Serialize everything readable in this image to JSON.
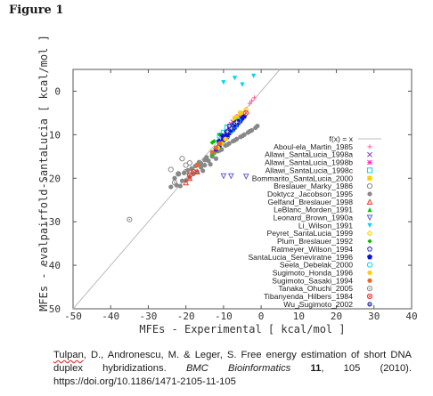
{
  "figure": {
    "title": "Figure 1"
  },
  "chart_data": {
    "type": "scatter",
    "xlabel": "MFEs - Experimental [ kcal/mol ]",
    "ylabel": "MFEs - evalpairfold-SantaLucia [ kcal/mol ]",
    "xlim": [
      -50,
      40
    ],
    "ylim": [
      -50,
      5
    ],
    "y_inverted": true,
    "x_ticks": [
      "-50",
      "-40",
      "-30",
      "-20",
      "-10",
      "0",
      "10",
      "20",
      "30",
      "40"
    ],
    "y_ticks": [
      "0",
      "10",
      "20",
      "30",
      "40",
      "50"
    ],
    "grid": false,
    "legend_position": "right",
    "reference_line": {
      "label": "f(x) = x",
      "color": "#bbbbbb"
    },
    "series": [
      {
        "name": "Aboul-ela_Martin_1985",
        "color": "#ff5fa0",
        "marker": "plus",
        "points": [
          [
            -2.5,
            -2.2
          ],
          [
            -3,
            -2.8
          ],
          [
            -1.8,
            -1.5
          ]
        ]
      },
      {
        "name": "Allawi_SantaLucia_1998a",
        "color": "#8a3ab9",
        "marker": "x",
        "points": [
          [
            -6.5,
            -6.2
          ],
          [
            -7.5,
            -7.1
          ],
          [
            -8.5,
            -8.2
          ],
          [
            -5.5,
            -5.4
          ]
        ]
      },
      {
        "name": "Allawi_SantaLucia_1998b",
        "color": "#ff33cc",
        "marker": "star",
        "points": [
          [
            -7,
            -6.6
          ],
          [
            -6,
            -5.8
          ],
          [
            -8,
            -7.6
          ]
        ]
      },
      {
        "name": "Allawi_SantaLucia_1998c",
        "color": "#00d4f0",
        "marker": "square",
        "points": [
          [
            -9,
            -8.3
          ],
          [
            -10,
            -9.5
          ],
          [
            -11,
            -10.2
          ]
        ]
      },
      {
        "name": "Bommarito_SantaLucia_2000",
        "color": "#ffd000",
        "marker": "filled-square",
        "points": [
          [
            -5.5,
            -5
          ],
          [
            -6.5,
            -6
          ],
          [
            -7,
            -6.3
          ]
        ]
      },
      {
        "name": "Breslauer_Marky_1986",
        "color": "#888888",
        "marker": "circle",
        "points": [
          [
            -22,
            -19
          ],
          [
            -20,
            -17
          ],
          [
            -19,
            -16.5
          ],
          [
            -24,
            -18
          ],
          [
            -21,
            -15.5
          ]
        ]
      },
      {
        "name": "Doktycz_Jacobson_1995",
        "color": "#888888",
        "marker": "filled-circle",
        "points": [
          [
            -14,
            -16
          ],
          [
            -13,
            -15
          ],
          [
            -15,
            -17
          ],
          [
            -12,
            -15.5
          ],
          [
            -16,
            -17.5
          ],
          [
            -13.5,
            -16.8
          ],
          [
            -14.5,
            -15.2
          ],
          [
            -17,
            -18.5
          ],
          [
            -18,
            -19
          ],
          [
            -19,
            -19.8
          ],
          [
            -20,
            -20.5
          ],
          [
            -21,
            -20.6
          ],
          [
            -17.5,
            -17.2
          ],
          [
            -16.5,
            -16.3
          ],
          [
            -15.5,
            -18.3
          ],
          [
            -18.5,
            -17.8
          ],
          [
            -22,
            -19
          ],
          [
            -23,
            -20
          ],
          [
            -12.5,
            -14.2
          ],
          [
            -11.5,
            -13.8
          ],
          [
            -10.5,
            -13.4
          ],
          [
            -9.5,
            -12.5
          ],
          [
            -8.5,
            -12.0
          ],
          [
            -7.5,
            -11.5
          ],
          [
            -6.5,
            -11.0
          ],
          [
            -5.5,
            -10.5
          ],
          [
            -4.5,
            -10.0
          ],
          [
            -3.5,
            -9.5
          ],
          [
            -2.5,
            -9.0
          ],
          [
            -1.5,
            -8.4
          ],
          [
            -1.0,
            -8.0
          ],
          [
            -3.0,
            -9.2
          ],
          [
            -5.0,
            -10.3
          ],
          [
            -7.0,
            -11.3
          ],
          [
            -9.0,
            -12.3
          ],
          [
            -11.0,
            -13.6
          ],
          [
            -13.0,
            -14.6
          ],
          [
            -20.5,
            -18.8
          ],
          [
            -19.5,
            -18.2
          ],
          [
            -17.0,
            -16.9
          ],
          [
            -16.0,
            -16.6
          ],
          [
            -15.0,
            -15.8
          ],
          [
            -24,
            -22
          ],
          [
            -22.5,
            -21.6
          ],
          [
            -21.5,
            -21.8
          ]
        ]
      },
      {
        "name": "Gelfand_Breslauer_1998",
        "color": "#e83a2a",
        "marker": "triangle",
        "points": [
          [
            -20,
            -21
          ],
          [
            -19,
            -20
          ],
          [
            -17,
            -18.5
          ]
        ]
      },
      {
        "name": "LeBlanc_Morden_1991",
        "color": "#00cc00",
        "marker": "filled-triangle",
        "points": [
          [
            -12,
            -13.5
          ],
          [
            -13,
            -14.5
          ],
          [
            -11,
            -12.5
          ]
        ]
      },
      {
        "name": "Leonard_Brown_1990a",
        "color": "#6060cc",
        "marker": "inv-triangle",
        "points": [
          [
            -10,
            -19.5
          ],
          [
            -8,
            -19.5
          ],
          [
            -4,
            -19.6
          ]
        ]
      },
      {
        "name": "Li_Wilson_1991",
        "color": "#00d4f0",
        "marker": "filled-inv-triangle",
        "points": [
          [
            -10,
            2
          ],
          [
            -7,
            3
          ],
          [
            -5,
            1.5
          ],
          [
            -2,
            3.5
          ]
        ]
      },
      {
        "name": "Peyret_SantaLucia_1999",
        "color": "#ffd000",
        "marker": "diamond",
        "points": [
          [
            -5,
            -5.5
          ],
          [
            -6,
            -6.5
          ],
          [
            -4,
            -4.2
          ]
        ]
      },
      {
        "name": "Plum_Breslauer_1992",
        "color": "#00bb00",
        "marker": "filled-diamond",
        "points": [
          [
            -11,
            -10
          ],
          [
            -12.5,
            -11.5
          ],
          [
            -13,
            -11.8
          ]
        ]
      },
      {
        "name": "Ratmeyer_Wilson_1994",
        "color": "#3030cc",
        "marker": "pentagon",
        "points": [
          [
            -9,
            -10.5
          ],
          [
            -10,
            -11.2
          ],
          [
            -8,
            -9.2
          ]
        ]
      },
      {
        "name": "SantaLucia_Seneviratne_1996",
        "color": "#1010e0",
        "marker": "filled-pentagon",
        "points": [
          [
            -9,
            -10
          ],
          [
            -8.5,
            -9.6
          ],
          [
            -8,
            -9.2
          ],
          [
            -7.5,
            -8.8
          ],
          [
            -7,
            -8.3
          ],
          [
            -6.5,
            -7.8
          ],
          [
            -6,
            -7.2
          ],
          [
            -5.5,
            -6.8
          ],
          [
            -5,
            -6.2
          ],
          [
            -9.5,
            -10.6
          ],
          [
            -10,
            -11.2
          ],
          [
            -10.5,
            -11.8
          ],
          [
            -11,
            -12.3
          ],
          [
            -11.5,
            -12.9
          ],
          [
            -12,
            -13.3
          ],
          [
            -4.5,
            -5.8
          ],
          [
            -9.2,
            -9.4
          ],
          [
            -8.2,
            -8.6
          ],
          [
            -7.2,
            -7.7
          ],
          [
            -10.2,
            -10.3
          ],
          [
            -11.2,
            -11.5
          ],
          [
            -6.3,
            -6.9
          ]
        ]
      },
      {
        "name": "Seela_Debelak_2000",
        "color": "#00d4f0",
        "marker": "open-circle",
        "points": [
          [
            -7,
            -8
          ],
          [
            -6,
            -6.8
          ],
          [
            -8,
            -9.1
          ]
        ]
      },
      {
        "name": "Sugimoto_Honda_1996",
        "color": "#ffd000",
        "marker": "filled-circle",
        "points": [
          [
            -10.5,
            -12
          ],
          [
            -9.5,
            -11
          ],
          [
            -11.5,
            -13
          ]
        ]
      },
      {
        "name": "Sugimoto_Sasaki_1994",
        "color": "#e86a2a",
        "marker": "filled-circle",
        "points": [
          [
            -12,
            -13
          ],
          [
            -11,
            -12
          ],
          [
            -13,
            -14
          ],
          [
            -17,
            -17
          ]
        ]
      },
      {
        "name": "Tanaka_Ohuchi_2005",
        "color": "#888888",
        "marker": "circle-dot",
        "points": [
          [
            -35,
            -29.5
          ],
          [
            -20,
            -18.5
          ],
          [
            -23,
            -21
          ]
        ]
      },
      {
        "name": "Tibanyenda_Hilbers_1984",
        "color": "#e83a2a",
        "marker": "circle-x",
        "points": [
          [
            -18,
            -18.5
          ],
          [
            -19,
            -19.3
          ],
          [
            -4,
            -5
          ]
        ]
      },
      {
        "name": "Wu_Sugimoto_2002",
        "color": "#2020a0",
        "marker": "circle-cross",
        "points": [
          [
            -8,
            -8.5
          ],
          [
            -7,
            -7.3
          ],
          [
            -9,
            -9.3
          ],
          [
            -8.5,
            -8
          ],
          [
            -6.5,
            -7.1
          ]
        ]
      }
    ]
  },
  "citation": {
    "authors": "Tulpan",
    "authors_rest": ", D., Andronescu, M. & Leger, S. Free energy estimation of short DNA duplex hybridizations.",
    "journal": "BMC Bioinformatics",
    "volume": "11",
    "pages_year": ", 105 (2010).",
    "doi": "https://doi.org/10.1186/1471-2105-11-105"
  }
}
